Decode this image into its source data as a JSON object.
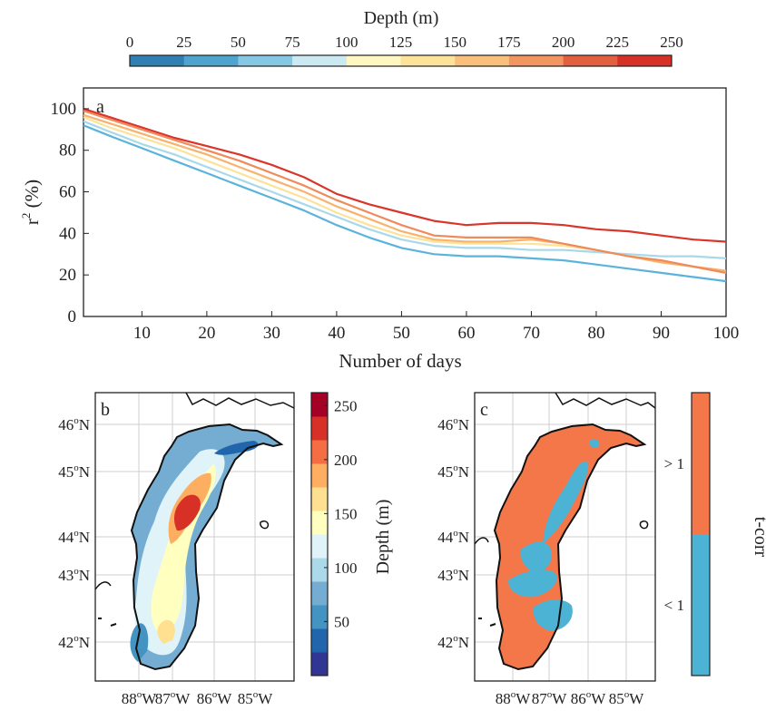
{
  "top_colorbar": {
    "title": "Depth (m)",
    "ticks": [
      "0",
      "25",
      "50",
      "75",
      "100",
      "125",
      "150",
      "175",
      "200",
      "225",
      "250"
    ],
    "colors": [
      "#2f7fb3",
      "#4ea4cf",
      "#86c7e3",
      "#cbe9f1",
      "#fff7c2",
      "#fde29a",
      "#f8c07a",
      "#f29560",
      "#e2603f",
      "#d73027"
    ]
  },
  "chart_data": [
    {
      "type": "line",
      "panel_label": "a",
      "xlabel": "Number of days",
      "ylabel_main": "r",
      "ylabel_sup": "2",
      "ylabel_rest": " (%)",
      "xlim": [
        1,
        100
      ],
      "ylim": [
        0,
        110
      ],
      "xticks": [
        "10",
        "20",
        "30",
        "40",
        "50",
        "60",
        "70",
        "80",
        "90",
        "100"
      ],
      "yticks": [
        "0",
        "20",
        "40",
        "60",
        "80",
        "100"
      ],
      "grid": false,
      "x": [
        1,
        5,
        10,
        15,
        20,
        25,
        30,
        35,
        40,
        45,
        50,
        55,
        60,
        65,
        70,
        75,
        80,
        85,
        90,
        95,
        100
      ],
      "series": [
        {
          "color": "#5bb3dc",
          "values": [
            92,
            87,
            81,
            75,
            69,
            63,
            57,
            51,
            44,
            38,
            33,
            30,
            29,
            29,
            28,
            27,
            25,
            23,
            21,
            19,
            17
          ]
        },
        {
          "color": "#a9d8ea",
          "values": [
            94,
            89,
            83,
            78,
            72,
            66,
            60,
            54,
            48,
            42,
            37,
            34,
            33,
            33,
            32,
            32,
            31,
            30,
            29,
            29,
            28
          ]
        },
        {
          "color": "#fde29a",
          "values": [
            96,
            91,
            86,
            81,
            75,
            69,
            63,
            57,
            50,
            44,
            39,
            36,
            35,
            35,
            35,
            34,
            32,
            29,
            27,
            24,
            21
          ]
        },
        {
          "color": "#f7b26b",
          "values": [
            97,
            93,
            88,
            83,
            78,
            72,
            66,
            60,
            53,
            47,
            41,
            37,
            36,
            36,
            37,
            35,
            32,
            29,
            26,
            24,
            22
          ]
        },
        {
          "color": "#ef8a5a",
          "values": [
            99,
            95,
            90,
            85,
            80,
            75,
            69,
            63,
            56,
            50,
            44,
            39,
            38,
            38,
            38,
            35,
            32,
            29,
            27,
            24,
            21
          ]
        },
        {
          "color": "#d9352a",
          "values": [
            100,
            96,
            91,
            86,
            82,
            78,
            73,
            67,
            59,
            54,
            50,
            46,
            44,
            45,
            45,
            44,
            42,
            41,
            39,
            37,
            36
          ]
        }
      ]
    },
    {
      "type": "heatmap",
      "panel_label": "b",
      "colorbar_label": "Depth (m)",
      "colorbar_ticks": [
        "50",
        "100",
        "150",
        "200",
        "250"
      ],
      "colorbar_colors": [
        "#313695",
        "#2166ac",
        "#4393c3",
        "#74add1",
        "#abd9e9",
        "#e0f3f8",
        "#ffffbf",
        "#fee090",
        "#fdae61",
        "#f46d43",
        "#d73027",
        "#a50026"
      ],
      "lat_ticks": [
        "42",
        "43",
        "44",
        "45",
        "46"
      ],
      "lon_ticks": [
        "88",
        "87",
        "86",
        "85"
      ],
      "lat_suffix": "N",
      "lon_suffix": "W",
      "degree": "o",
      "description_regions": "deep basin in north-central lake, shallower shelves along coast"
    },
    {
      "type": "heatmap",
      "panel_label": "c",
      "colorbar_label": "t-corr",
      "categories": [
        "> 1",
        "< 1"
      ],
      "colors": [
        "#f4774a",
        "#4db3d4"
      ],
      "lat_ticks": [
        "42",
        "43",
        "44",
        "45",
        "46"
      ],
      "lon_ticks": [
        "88",
        "87",
        "86",
        "85"
      ],
      "lat_suffix": "N",
      "lon_suffix": "W",
      "degree": "o"
    }
  ]
}
